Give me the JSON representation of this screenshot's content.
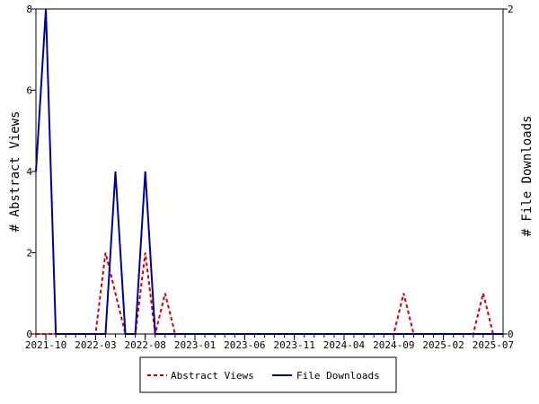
{
  "chart_data": {
    "type": "line",
    "ylabel_left": "# Abstract Views",
    "ylabel_right": "# File Downloads",
    "ylim_left": [
      0,
      8
    ],
    "ylim_right": [
      0,
      2
    ],
    "yticks_left": [
      "0",
      "2",
      "4",
      "6",
      "8"
    ],
    "yticks_right": [
      "0",
      "2"
    ],
    "xticks": [
      "2021-10",
      "2022-03",
      "2022-08",
      "2023-01",
      "2023-06",
      "2023-11",
      "2024-04",
      "2024-09",
      "2025-02",
      "2025-07"
    ],
    "x": [
      "2021-09",
      "2021-10",
      "2021-11",
      "2021-12",
      "2022-01",
      "2022-02",
      "2022-03",
      "2022-04",
      "2022-05",
      "2022-06",
      "2022-07",
      "2022-08",
      "2022-09",
      "2022-10",
      "2022-11",
      "2022-12",
      "2023-01",
      "2023-02",
      "2023-03",
      "2023-04",
      "2023-05",
      "2023-06",
      "2023-07",
      "2023-08",
      "2023-09",
      "2023-10",
      "2023-11",
      "2023-12",
      "2024-01",
      "2024-02",
      "2024-03",
      "2024-04",
      "2024-05",
      "2024-06",
      "2024-07",
      "2024-08",
      "2024-09",
      "2024-10",
      "2024-11",
      "2024-12",
      "2025-01",
      "2025-02",
      "2025-03",
      "2025-04",
      "2025-05",
      "2025-06",
      "2025-07",
      "2025-08"
    ],
    "series": [
      {
        "name": "Abstract Views",
        "axis": "left",
        "color": "#cc0000",
        "dash": true,
        "values": [
          0,
          0,
          0,
          0,
          0,
          0,
          0,
          2,
          1,
          0,
          0,
          2,
          0,
          1,
          0,
          0,
          0,
          0,
          0,
          0,
          0,
          0,
          0,
          0,
          0,
          0,
          0,
          0,
          0,
          0,
          0,
          0,
          0,
          0,
          0,
          0,
          0,
          1,
          0,
          0,
          0,
          0,
          0,
          0,
          0,
          1,
          0,
          0
        ]
      },
      {
        "name": "File Downloads",
        "axis": "right",
        "color": "#000099",
        "dash": false,
        "values": [
          1,
          2,
          0,
          0,
          0,
          0,
          0,
          0,
          1,
          0,
          0,
          1,
          0,
          0,
          0,
          0,
          0,
          0,
          0,
          0,
          0,
          0,
          0,
          0,
          0,
          0,
          0,
          0,
          0,
          0,
          0,
          0,
          0,
          0,
          0,
          0,
          0,
          0,
          0,
          0,
          0,
          0,
          0,
          0,
          0,
          0,
          0,
          0
        ]
      }
    ]
  }
}
